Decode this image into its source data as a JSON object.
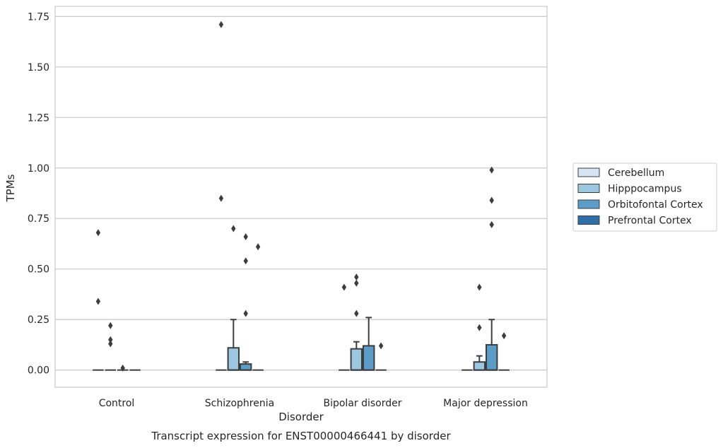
{
  "chart_data": {
    "type": "box",
    "xlabel": "Disorder",
    "ylabel": "TPMs",
    "caption": "Transcript expression for ENST00000466441 by disorder",
    "ylim": [
      -0.085,
      1.8
    ],
    "yticks": [
      "0.00",
      "0.25",
      "0.50",
      "0.75",
      "1.00",
      "1.25",
      "1.50",
      "1.75"
    ],
    "ytick_values": [
      0,
      0.25,
      0.5,
      0.75,
      1.0,
      1.25,
      1.5,
      1.75
    ],
    "grid": "horizontal",
    "legend_position": "right",
    "categories": [
      "Control",
      "Schizophrenia",
      "Bipolar disorder",
      "Major depression"
    ],
    "series": [
      {
        "name": "Cerebellum",
        "color": "#d6e5f3",
        "boxes": [
          {
            "q1": 0,
            "median": 0,
            "q3": 0,
            "whislo": 0,
            "whishi": 0,
            "fliers": [
              0.68,
              0.34
            ]
          },
          {
            "q1": 0,
            "median": 0,
            "q3": 0,
            "whislo": 0,
            "whishi": 0,
            "fliers": [
              1.71,
              0.85
            ]
          },
          {
            "q1": 0,
            "median": 0,
            "q3": 0,
            "whislo": 0,
            "whishi": 0,
            "fliers": [
              0.41
            ]
          },
          {
            "q1": 0,
            "median": 0,
            "q3": 0,
            "whislo": 0,
            "whishi": 0,
            "fliers": []
          }
        ]
      },
      {
        "name": "Hipppocampus",
        "color": "#9ac8e0",
        "boxes": [
          {
            "q1": 0,
            "median": 0,
            "q3": 0,
            "whislo": 0,
            "whishi": 0,
            "fliers": [
              0.22,
              0.15,
              0.13
            ]
          },
          {
            "q1": 0,
            "median": 0,
            "q3": 0.11,
            "whislo": 0,
            "whishi": 0.25,
            "fliers": [
              0.7
            ]
          },
          {
            "q1": 0,
            "median": 0,
            "q3": 0.105,
            "whislo": 0,
            "whishi": 0.14,
            "fliers": [
              0.46,
              0.43,
              0.28
            ]
          },
          {
            "q1": 0,
            "median": 0,
            "q3": 0.04,
            "whislo": 0,
            "whishi": 0.07,
            "fliers": [
              0.41,
              0.21
            ]
          }
        ]
      },
      {
        "name": "Orbitofontal Cortex",
        "color": "#5a9dc8",
        "boxes": [
          {
            "q1": 0,
            "median": 0,
            "q3": 0,
            "whislo": 0,
            "whishi": 0,
            "fliers": [
              0.01
            ]
          },
          {
            "q1": 0,
            "median": 0,
            "q3": 0.03,
            "whislo": 0,
            "whishi": 0.04,
            "fliers": [
              0.66,
              0.54,
              0.28
            ]
          },
          {
            "q1": 0,
            "median": 0,
            "q3": 0.12,
            "whislo": 0,
            "whishi": 0.26,
            "fliers": []
          },
          {
            "q1": 0,
            "median": 0,
            "q3": 0.125,
            "whislo": 0,
            "whishi": 0.25,
            "fliers": [
              0.99,
              0.84,
              0.72
            ]
          }
        ]
      },
      {
        "name": "Prefrontal Cortex",
        "color": "#2e6fab",
        "boxes": [
          {
            "q1": 0,
            "median": 0,
            "q3": 0,
            "whislo": 0,
            "whishi": 0,
            "fliers": []
          },
          {
            "q1": 0,
            "median": 0,
            "q3": 0,
            "whislo": 0,
            "whishi": 0,
            "fliers": [
              0.61
            ]
          },
          {
            "q1": 0,
            "median": 0,
            "q3": 0,
            "whislo": 0,
            "whishi": 0,
            "fliers": [
              0.12
            ]
          },
          {
            "q1": 0,
            "median": 0,
            "q3": 0,
            "whislo": 0,
            "whishi": 0,
            "fliers": [
              0.17
            ]
          }
        ]
      }
    ]
  }
}
